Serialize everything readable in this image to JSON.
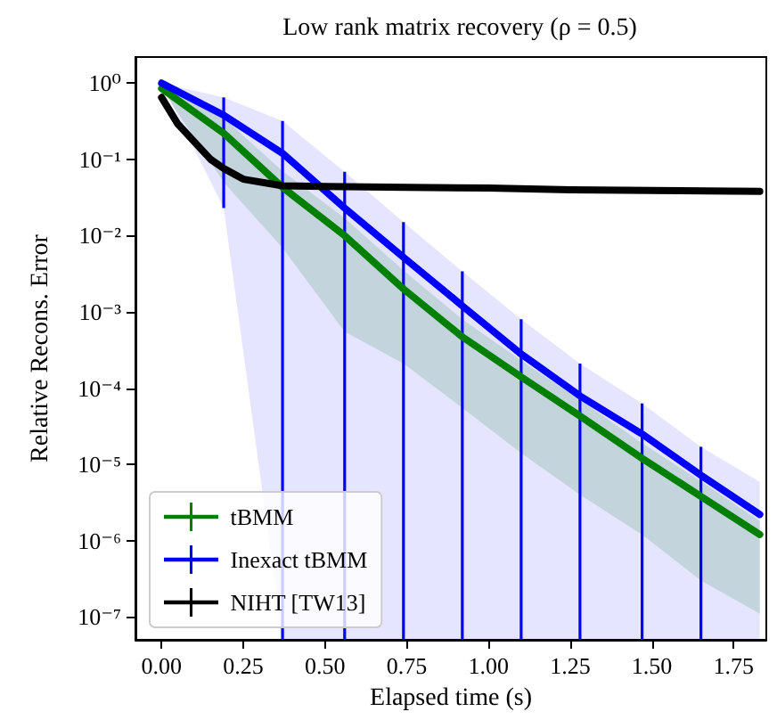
{
  "chart_data": {
    "type": "line",
    "title": "Low rank matrix recovery (ρ = 0.5)",
    "xlabel": "Elapsed time (s)",
    "ylabel": "Relative Recons. Error",
    "series": [
      {
        "name": "tBMM",
        "color": "#008000",
        "x": [
          0,
          0.19,
          0.37,
          0.56,
          0.74,
          0.92,
          1.1,
          1.28,
          1.47,
          1.65,
          1.83
        ],
        "values": [
          0.85,
          0.22,
          0.043,
          0.01,
          0.002,
          0.00047,
          0.00014,
          4.3e-05,
          1.2e-05,
          3.8e-06,
          1.2e-06
        ],
        "lower": [
          0.85,
          0.05,
          0.0069,
          0.00055,
          0.00021,
          5.5e-05,
          1.4e-05,
          4e-06,
          1.2e-06,
          3e-07,
          1.1e-07
        ],
        "upper": [
          1,
          0.35,
          0.07,
          0.017,
          0.0035,
          0.0008,
          0.00023,
          7e-05,
          1.9e-05,
          6e-06,
          1.8e-06
        ]
      },
      {
        "name": "Inexact tBMM",
        "color": "#0000ff",
        "x": [
          0,
          0.19,
          0.37,
          0.56,
          0.74,
          0.92,
          1.1,
          1.28,
          1.47,
          1.65,
          1.83
        ],
        "values": [
          1,
          0.38,
          0.12,
          0.023,
          0.0052,
          0.0012,
          0.00028,
          7.9e-05,
          2.5e-05,
          7.2e-06,
          2.2e-06
        ],
        "errors": [
          null,
          [
            0.023,
            0.65
          ],
          [
            5e-08,
            0.32
          ],
          [
            5e-08,
            0.069
          ],
          [
            5e-08,
            0.015
          ],
          [
            5e-08,
            0.0034
          ],
          [
            5e-08,
            0.0008
          ],
          [
            5e-08,
            0.00021
          ],
          [
            5e-08,
            6.3e-05
          ],
          [
            5e-08,
            1.7e-05
          ],
          null
        ],
        "lower": [
          1,
          0.023,
          5e-08,
          5e-08,
          5e-08,
          5e-08,
          5e-08,
          5e-08,
          5e-08,
          5e-08,
          5e-08
        ],
        "upper": [
          1,
          0.65,
          0.32,
          0.069,
          0.015,
          0.0034,
          0.0008,
          0.00021,
          6.3e-05,
          1.7e-05,
          5.9e-06
        ]
      },
      {
        "name": "NIHT [TW13]",
        "color": "#000000",
        "x": [
          0,
          0.05,
          0.1,
          0.15,
          0.19,
          0.25,
          0.37,
          0.5,
          0.75,
          1.0,
          1.25,
          1.5,
          1.83
        ],
        "values": [
          0.65,
          0.29,
          0.17,
          0.1,
          0.076,
          0.055,
          0.045,
          0.044,
          0.043,
          0.042,
          0.04,
          0.039,
          0.038
        ]
      }
    ],
    "xlim": [
      -0.08,
      1.85
    ],
    "xticks": [
      {
        "value": 0,
        "label": "0.00"
      },
      0.25,
      {
        "value": 0.5,
        "label": "0.50"
      },
      0.75,
      {
        "value": 1,
        "label": "1.00"
      },
      1.25,
      {
        "value": 1.5,
        "label": "1.50"
      },
      1.75
    ],
    "ylim": [
      5e-08,
      2.2
    ],
    "yticks": [
      {
        "value": 1,
        "label": "10⁰"
      },
      {
        "value": 0.1,
        "label": "10⁻¹"
      },
      {
        "value": 0.01,
        "label": "10⁻²"
      },
      {
        "value": 0.001,
        "label": "10⁻³"
      },
      {
        "value": 0.0001,
        "label": "10⁻⁴"
      },
      {
        "value": 1e-05,
        "label": "10⁻⁵"
      },
      {
        "value": 1e-06,
        "label": "10⁻⁶"
      },
      {
        "value": 1e-07,
        "label": "10⁻⁷"
      }
    ],
    "log": "y",
    "grid": false,
    "legend": "bottom left",
    "marker": "none",
    "line_style": "solid"
  }
}
